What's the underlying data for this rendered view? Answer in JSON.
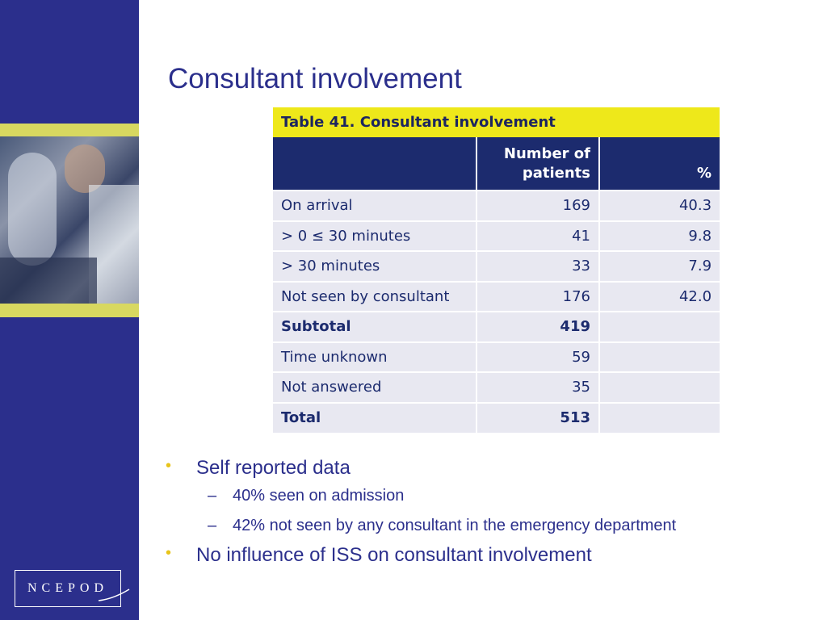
{
  "slide": {
    "title": "Consultant involvement"
  },
  "logo": {
    "text": "NCEPOD"
  },
  "table": {
    "caption": "Table 41. Consultant involvement",
    "headers": [
      "",
      "Number of patients",
      "%"
    ],
    "header_lines": {
      "col2_line1": "Number of",
      "col2_line2": "patients",
      "col3": "%"
    },
    "rows": [
      {
        "label": "On arrival",
        "patients": "169",
        "pct": "40.3",
        "bold": false
      },
      {
        "label": "> 0 ≤ 30 minutes",
        "patients": "41",
        "pct": "9.8",
        "bold": false
      },
      {
        "label": "> 30 minutes",
        "patients": "33",
        "pct": "7.9",
        "bold": false
      },
      {
        "label": "Not seen by consultant",
        "patients": "176",
        "pct": "42.0",
        "bold": false
      },
      {
        "label": "Subtotal",
        "patients": "419",
        "pct": "",
        "bold": true
      },
      {
        "label": "Time unknown",
        "patients": "59",
        "pct": "",
        "bold": false
      },
      {
        "label": "Not answered",
        "patients": "35",
        "pct": "",
        "bold": false
      },
      {
        "label": "Total",
        "patients": "513",
        "pct": "",
        "bold": true
      }
    ]
  },
  "bullets": [
    {
      "text": "Self reported data",
      "sub": [
        "40% seen on admission",
        "42% not seen by any consultant in the emergency department"
      ]
    },
    {
      "text": "No influence of ISS on consultant involvement",
      "sub": []
    }
  ],
  "colors": {
    "sidebar": "#2b2f8c",
    "caption_bg": "#eee81a",
    "header_bg": "#1c2b6e",
    "row_bg": "#e8e8f1",
    "bullet_dot": "#e8c41a"
  },
  "icons": {
    "bullet": "•",
    "dash": "–"
  }
}
